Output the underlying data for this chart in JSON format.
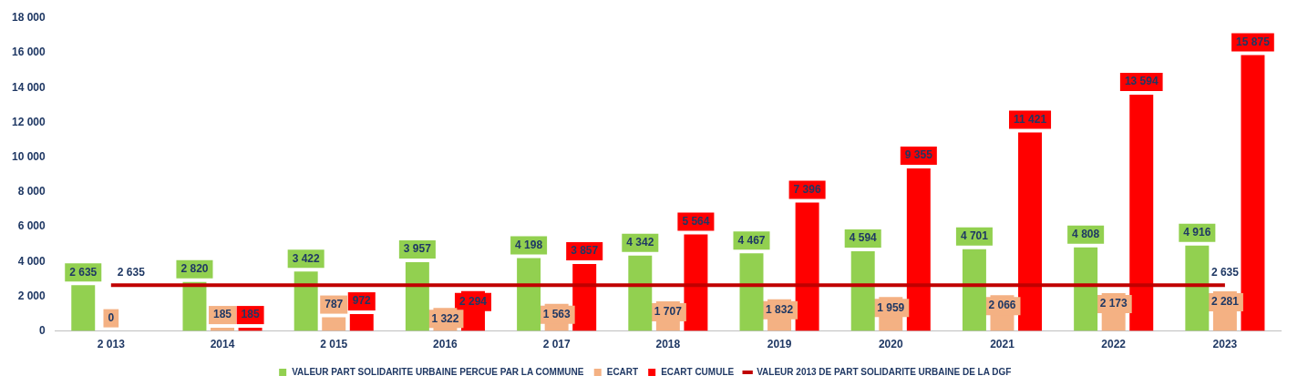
{
  "chart_data": {
    "type": "bar",
    "categories": [
      "2 013",
      "2014",
      "2 015",
      "2016",
      "2 017",
      "2018",
      "2019",
      "2020",
      "2021",
      "2022",
      "2023"
    ],
    "series": [
      {
        "name": "VALEUR PART SOLIDARITE URBAINE PERCUE PAR LA COMMUNE",
        "color": "#92d050",
        "values": [
          2635,
          2820,
          3422,
          3957,
          4198,
          4342,
          4467,
          4594,
          4701,
          4808,
          4916
        ],
        "value_labels": [
          "2 635",
          "2 820",
          "3 422",
          "3 957",
          "4 198",
          "4 342",
          "4 467",
          "4 594",
          "4 701",
          "4 808",
          "4 916"
        ]
      },
      {
        "name": "ECART",
        "color": "#f4b183",
        "values": [
          0,
          185,
          787,
          1322,
          1563,
          1707,
          1832,
          1959,
          2066,
          2173,
          2281
        ],
        "value_labels": [
          "0",
          "185",
          "787",
          "1 322",
          "1 563",
          "1 707",
          "1 832",
          "1 959",
          "2 066",
          "2 173",
          "2 281"
        ]
      },
      {
        "name": "ECART CUMULE",
        "color": "#ff0000",
        "values": [
          null,
          185,
          972,
          2294,
          3857,
          5564,
          7396,
          9355,
          11421,
          13594,
          15875
        ],
        "value_labels": [
          null,
          "185",
          "972",
          "2 294",
          "3 857",
          "5 564",
          "7 396",
          "9 355",
          "11 421",
          "13 594",
          "15 875"
        ]
      },
      {
        "name": "VALEUR 2013 DE PART SOLIDARITE URBAINE DE LA DGF",
        "type": "line",
        "color": "#c00000",
        "values": [
          2635,
          2635,
          2635,
          2635,
          2635,
          2635,
          2635,
          2635,
          2635,
          2635,
          2635
        ],
        "value_labels": [
          "2 635",
          null,
          null,
          null,
          null,
          null,
          null,
          null,
          null,
          null,
          "2 635"
        ]
      }
    ],
    "ylim": [
      0,
      18000
    ],
    "yticks": [
      0,
      {
        "value": 2000,
        "label": "2 000"
      },
      {
        "value": 4000,
        "label": "4 000"
      },
      {
        "value": 6000,
        "label": "6 000"
      },
      {
        "value": 8000,
        "label": "8 000"
      },
      {
        "value": 10000,
        "label": "10 000"
      },
      {
        "value": 12000,
        "label": "12 000"
      },
      {
        "value": 14000,
        "label": "14 000"
      },
      {
        "value": 16000,
        "label": "16 000"
      },
      {
        "value": 18000,
        "label": "18 000"
      }
    ],
    "grid": false,
    "legend": "bottom",
    "marker": "none",
    "line_style": "solid"
  }
}
